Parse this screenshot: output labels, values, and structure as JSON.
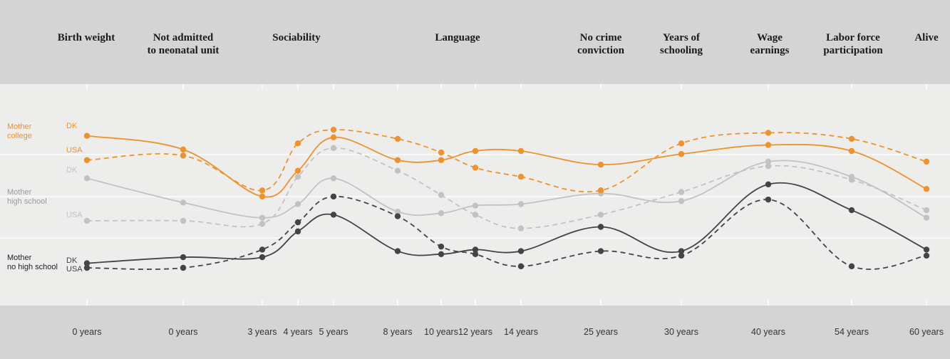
{
  "chart_data": {
    "type": "line",
    "outcomes": [
      [
        "Birth weight"
      ],
      [
        "Not admitted",
        "to neonatal unit"
      ],
      [
        "Sociability"
      ],
      [
        "Language"
      ],
      [
        "No crime",
        "conviction"
      ],
      [
        "Years of",
        "schooling"
      ],
      [
        "Wage",
        "earnings"
      ],
      [
        "Labor force",
        "participation"
      ],
      [
        "Alive"
      ]
    ],
    "x": [
      "0 years",
      "0 years",
      "3 years",
      "4 years",
      "5 years",
      "8 years",
      "10 years",
      "12 years",
      "14 years",
      "25 years",
      "30 years",
      "40 years",
      "54 years",
      "60 years"
    ],
    "group_labels": [
      {
        "lines": [
          "Mother",
          "college"
        ],
        "color": "#f0922b"
      },
      {
        "lines": [
          "Mother",
          "high school"
        ],
        "color": "#9a9a9a"
      },
      {
        "lines": [
          "Mother",
          "no high school"
        ],
        "color": "#222222"
      }
    ],
    "series": [
      {
        "name": "DK",
        "group": "Mother college",
        "style": "solid",
        "color": "#f0922b",
        "values": [
          0.87,
          0.78,
          0.47,
          0.64,
          0.86,
          0.71,
          0.71,
          0.77,
          0.77,
          0.68,
          0.75,
          0.81,
          0.77,
          0.52
        ]
      },
      {
        "name": "USA",
        "group": "Mother college",
        "style": "dashed",
        "color": "#f0922b",
        "values": [
          0.71,
          0.74,
          0.51,
          0.82,
          0.91,
          0.85,
          0.76,
          0.66,
          0.6,
          0.51,
          0.82,
          0.89,
          0.85,
          0.7
        ]
      },
      {
        "name": "DK",
        "group": "Mother high school",
        "style": "solid",
        "color": "#c2c2c2",
        "values": [
          0.59,
          0.43,
          0.33,
          0.42,
          0.59,
          0.37,
          0.36,
          0.41,
          0.42,
          0.49,
          0.44,
          0.7,
          0.6,
          0.33
        ]
      },
      {
        "name": "USA",
        "group": "Mother high school",
        "style": "dashed",
        "color": "#c2c2c2",
        "values": [
          0.31,
          0.31,
          0.29,
          0.6,
          0.79,
          0.64,
          0.48,
          0.35,
          0.26,
          0.35,
          0.5,
          0.67,
          0.58,
          0.38
        ]
      },
      {
        "name": "DK",
        "group": "Mother no high school",
        "style": "solid",
        "color": "#444444",
        "values": [
          0.03,
          0.07,
          0.07,
          0.24,
          0.35,
          0.11,
          0.09,
          0.12,
          0.11,
          0.27,
          0.11,
          0.55,
          0.38,
          0.12
        ]
      },
      {
        "name": "USA",
        "group": "Mother no high school",
        "style": "dashed",
        "color": "#444444",
        "values": [
          0.0,
          0.0,
          0.12,
          0.3,
          0.47,
          0.34,
          0.14,
          0.09,
          0.01,
          0.11,
          0.08,
          0.45,
          0.01,
          0.08
        ]
      }
    ],
    "legend": "left, inline per group"
  }
}
